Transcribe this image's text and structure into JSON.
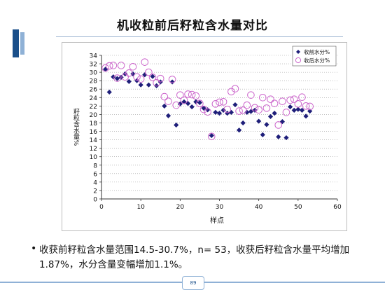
{
  "slide": {
    "title": "机收粒前后籽粒含水量对比",
    "page_number": "89"
  },
  "bullet": {
    "marker": "•",
    "text": "收获前籽粒含水量范围14.5-30.7%，n= 53，收获后籽粒含水量平均增加1.87%，水分含量变幅增加1.1%。"
  },
  "chart_data": {
    "type": "scatter",
    "title": "",
    "xlabel": "样点",
    "ylabel": "籽粒含水量%",
    "xlim": [
      0,
      60
    ],
    "ylim": [
      0,
      34
    ],
    "x_ticks": [
      0,
      10,
      20,
      30,
      40,
      50,
      60
    ],
    "y_ticks": [
      0,
      2,
      4,
      6,
      8,
      10,
      12,
      14,
      16,
      18,
      20,
      22,
      24,
      26,
      28,
      30,
      32,
      34
    ],
    "legend_position": "top-right",
    "series": [
      {
        "name": "收前水分%",
        "marker": "diamond",
        "color": "#1f1f7a",
        "points": [
          [
            1,
            30.7
          ],
          [
            2,
            25.3
          ],
          [
            3,
            28.9
          ],
          [
            4,
            28.5
          ],
          [
            5,
            28.8
          ],
          [
            6,
            29.6
          ],
          [
            7,
            27.8
          ],
          [
            8,
            29.6
          ],
          [
            9,
            28.0
          ],
          [
            10,
            27.0
          ],
          [
            11,
            29.4
          ],
          [
            12,
            27.0
          ],
          [
            13,
            29.0
          ],
          [
            14,
            26.8
          ],
          [
            15,
            27.7
          ],
          [
            16,
            22.0
          ],
          [
            17,
            19.7
          ],
          [
            18,
            27.7
          ],
          [
            19,
            17.5
          ],
          [
            20,
            22.5
          ],
          [
            21,
            23.0
          ],
          [
            22,
            22.6
          ],
          [
            23,
            21.8
          ],
          [
            24,
            23.0
          ],
          [
            25,
            22.8
          ],
          [
            26,
            21.5
          ],
          [
            27,
            21.1
          ],
          [
            28,
            15.0
          ],
          [
            29,
            20.5
          ],
          [
            30,
            20.3
          ],
          [
            31,
            21.0
          ],
          [
            32,
            20.3
          ],
          [
            33,
            20.5
          ],
          [
            34,
            22.3
          ],
          [
            35,
            16.3
          ],
          [
            36,
            18.0
          ],
          [
            37,
            20.5
          ],
          [
            38,
            20.7
          ],
          [
            39,
            21.0
          ],
          [
            40,
            18.4
          ],
          [
            41,
            15.2
          ],
          [
            42,
            17.6
          ],
          [
            43,
            19.5
          ],
          [
            44,
            20.3
          ],
          [
            45,
            14.7
          ],
          [
            46,
            18.3
          ],
          [
            47,
            14.5
          ],
          [
            48,
            21.8
          ],
          [
            49,
            21.0
          ],
          [
            50,
            21.2
          ],
          [
            51,
            21.0
          ],
          [
            52,
            19.6
          ],
          [
            53,
            20.8
          ]
        ]
      },
      {
        "name": "收后水分%",
        "marker": "circle",
        "color": "#cc66cc",
        "points": [
          [
            1,
            31.0
          ],
          [
            2,
            31.5
          ],
          [
            3,
            31.6
          ],
          [
            4,
            28.6
          ],
          [
            5,
            31.6
          ],
          [
            6,
            28.9
          ],
          [
            7,
            29.8
          ],
          [
            8,
            31.3
          ],
          [
            9,
            28.9
          ],
          [
            10,
            28.4
          ],
          [
            11,
            32.4
          ],
          [
            12,
            30.0
          ],
          [
            13,
            28.8
          ],
          [
            14,
            27.5
          ],
          [
            15,
            28.5
          ],
          [
            16,
            24.2
          ],
          [
            17,
            23.1
          ],
          [
            18,
            28.3
          ],
          [
            19,
            22.2
          ],
          [
            20,
            24.6
          ],
          [
            21,
            23.4
          ],
          [
            22,
            24.8
          ],
          [
            23,
            24.7
          ],
          [
            24,
            24.4
          ],
          [
            25,
            22.6
          ],
          [
            26,
            21.2
          ],
          [
            27,
            20.6
          ],
          [
            28,
            14.8
          ],
          [
            29,
            22.5
          ],
          [
            30,
            22.9
          ],
          [
            31,
            23.0
          ],
          [
            32,
            21.2
          ],
          [
            33,
            25.4
          ],
          [
            34,
            26.1
          ],
          [
            35,
            20.8
          ],
          [
            36,
            21.0
          ],
          [
            37,
            22.2
          ],
          [
            38,
            24.6
          ],
          [
            39,
            21.6
          ],
          [
            40,
            21.1
          ],
          [
            41,
            24.0
          ],
          [
            42,
            21.5
          ],
          [
            43,
            23.6
          ],
          [
            44,
            22.6
          ],
          [
            45,
            17.5
          ],
          [
            46,
            23.1
          ],
          [
            47,
            20.5
          ],
          [
            48,
            23.4
          ],
          [
            49,
            23.6
          ],
          [
            50,
            22.5
          ],
          [
            51,
            24.1
          ],
          [
            52,
            22.0
          ],
          [
            53,
            21.9
          ]
        ]
      }
    ]
  }
}
